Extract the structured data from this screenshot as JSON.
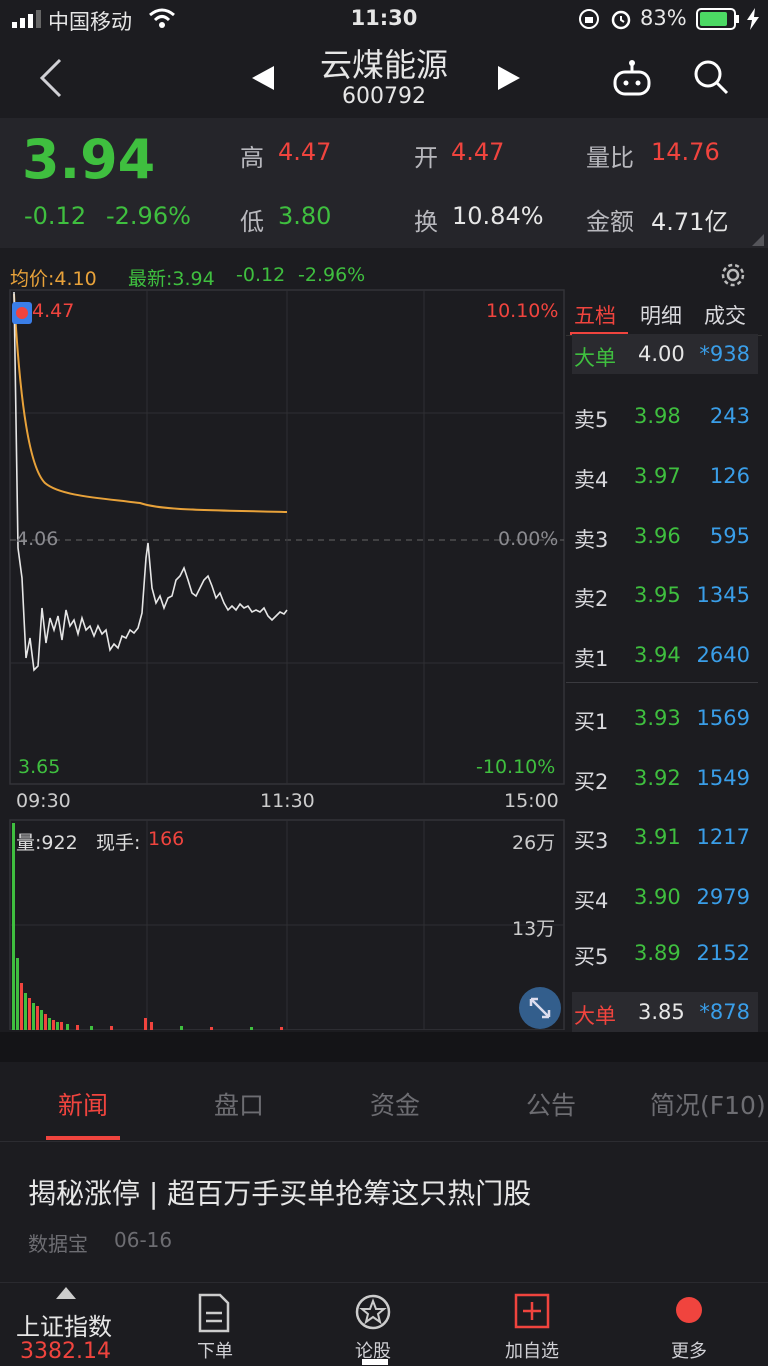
{
  "status": {
    "carrier": "中国移动",
    "time": "11:30",
    "battery": "83%"
  },
  "nav": {
    "title": "云煤能源",
    "code": "600792"
  },
  "quote": {
    "price": "3.94",
    "change": "-0.12",
    "change_pct": "-2.96%",
    "high_label": "高",
    "high": "4.47",
    "open_label": "开",
    "open": "4.47",
    "vol_ratio_label": "量比",
    "vol_ratio": "14.76",
    "low_label": "低",
    "low": "3.80",
    "turnover_label": "换",
    "turnover": "10.84%",
    "amount_label": "金额",
    "amount": "4.71亿"
  },
  "chart": {
    "avg_label": "均价:4.10",
    "latest_label": "最新:3.94",
    "latest_change": "-0.12",
    "latest_pct": "-2.96%",
    "y_top": "4.47",
    "y_mid": "4.06",
    "y_bottom": "3.65",
    "pct_top": "10.10%",
    "pct_mid": "0.00%",
    "pct_bottom": "-10.10%",
    "x_start": "09:30",
    "x_mid": "11:30",
    "x_end": "15:00",
    "vol_label": "量:922",
    "hand_label": "现手:",
    "hand_value": "166",
    "vol_top": "26万",
    "vol_mid": "13万"
  },
  "orderbook": {
    "tabs": [
      "五档",
      "明细",
      "成交"
    ],
    "big_sell": {
      "label": "大单",
      "price": "4.00",
      "vol": "*938"
    },
    "asks": [
      {
        "name": "卖5",
        "price": "3.98",
        "vol": "243"
      },
      {
        "name": "卖4",
        "price": "3.97",
        "vol": "126"
      },
      {
        "name": "卖3",
        "price": "3.96",
        "vol": "595"
      },
      {
        "name": "卖2",
        "price": "3.95",
        "vol": "1345"
      },
      {
        "name": "卖1",
        "price": "3.94",
        "vol": "2640"
      }
    ],
    "bids": [
      {
        "name": "买1",
        "price": "3.93",
        "vol": "1569"
      },
      {
        "name": "买2",
        "price": "3.92",
        "vol": "1549"
      },
      {
        "name": "买3",
        "price": "3.91",
        "vol": "1217"
      },
      {
        "name": "买4",
        "price": "3.90",
        "vol": "2979"
      },
      {
        "name": "买5",
        "price": "3.89",
        "vol": "2152"
      }
    ],
    "big_buy": {
      "label": "大单",
      "price": "3.85",
      "vol": "*878"
    }
  },
  "tabs2": [
    "新闻",
    "盘口",
    "资金",
    "公告",
    "简况(F10)"
  ],
  "news": {
    "headline": "揭秘涨停 | 超百万手买单抢筹这只热门股",
    "source": "数据宝",
    "date": "06-16"
  },
  "bottom": {
    "index_name": "上证指数",
    "index_value": "3382.14",
    "items": [
      "下单",
      "论股",
      "加自选",
      "更多"
    ]
  },
  "colors": {
    "up": "#f0443e",
    "down": "#3fbf3f",
    "avg": "#e8a23a",
    "vol": "#3a9ee8"
  }
}
